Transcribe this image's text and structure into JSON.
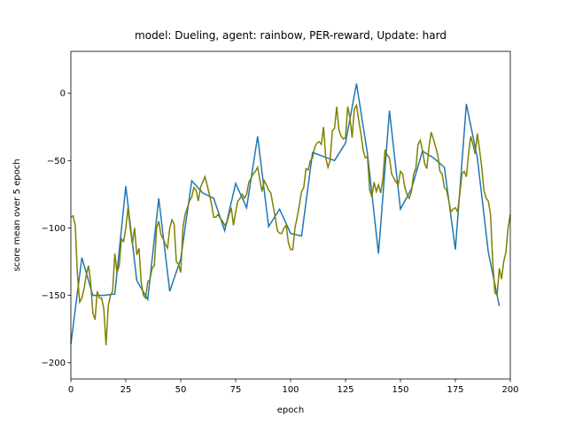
{
  "chart_data": {
    "type": "line",
    "title": "model: Dueling, agent: rainbow, PER-reward, Update: hard",
    "x_label": "epoch",
    "y_label": "score mean over 5 epoch",
    "xlim": [
      0,
      200
    ],
    "ylim": [
      -212,
      31
    ],
    "xticks": [
      0,
      25,
      50,
      75,
      100,
      125,
      150,
      175,
      200
    ],
    "yticks": [
      {
        "value": -200,
        "label": "−200"
      },
      {
        "value": -150,
        "label": "−150"
      },
      {
        "value": -100,
        "label": "−100"
      },
      {
        "value": -50,
        "label": "−50"
      },
      0
    ],
    "series": [
      {
        "color": "#1f77b4",
        "x": [
          0,
          5,
          10,
          15,
          20,
          25,
          30,
          35,
          40,
          45,
          50,
          55,
          60,
          65,
          70,
          75,
          80,
          85,
          90,
          95,
          100,
          105,
          110,
          115,
          120,
          125,
          130,
          135,
          140,
          145,
          150,
          155,
          160,
          165,
          170,
          175,
          180,
          185,
          190,
          195
        ],
        "values": [
          -186,
          -122,
          -150,
          -150,
          -149,
          -69,
          -139,
          -153,
          -78,
          -147,
          -123,
          -65,
          -74,
          -78,
          -102,
          -67,
          -85,
          -32,
          -99,
          -86,
          -104,
          -106,
          -44,
          -47,
          -50,
          -37,
          7,
          -45,
          -119,
          -13,
          -86,
          -71,
          -43,
          -48,
          -55,
          -116,
          -8,
          -48,
          -118,
          -158
        ]
      },
      {
        "color": "#808000",
        "x": [
          0,
          1,
          2,
          3,
          4,
          5,
          6,
          7,
          8,
          9,
          10,
          11,
          12,
          13,
          14,
          15,
          16,
          17,
          18,
          19,
          20,
          21,
          22,
          23,
          24,
          25,
          26,
          27,
          28,
          29,
          30,
          31,
          32,
          33,
          34,
          35,
          36,
          37,
          38,
          39,
          40,
          41,
          42,
          43,
          44,
          45,
          46,
          47,
          48,
          49,
          50,
          51,
          52,
          53,
          54,
          55,
          56,
          57,
          58,
          59,
          60,
          61,
          62,
          63,
          64,
          65,
          66,
          67,
          68,
          69,
          70,
          71,
          72,
          73,
          74,
          75,
          76,
          77,
          78,
          79,
          80,
          81,
          82,
          83,
          84,
          85,
          86,
          87,
          88,
          89,
          90,
          91,
          92,
          93,
          94,
          95,
          96,
          97,
          98,
          99,
          100,
          101,
          102,
          103,
          104,
          105,
          106,
          107,
          108,
          109,
          110,
          111,
          112,
          113,
          114,
          115,
          116,
          117,
          118,
          119,
          120,
          121,
          122,
          123,
          124,
          125,
          126,
          127,
          128,
          129,
          130,
          131,
          132,
          133,
          134,
          135,
          136,
          137,
          138,
          139,
          140,
          141,
          142,
          143,
          144,
          145,
          146,
          147,
          148,
          149,
          150,
          151,
          152,
          153,
          154,
          155,
          156,
          157,
          158,
          159,
          160,
          161,
          162,
          163,
          164,
          165,
          166,
          167,
          168,
          169,
          170,
          171,
          172,
          173,
          174,
          175,
          176,
          177,
          178,
          179,
          180,
          181,
          182,
          183,
          184,
          185,
          186,
          187,
          188,
          189,
          190,
          191,
          192,
          193,
          194,
          195,
          196,
          197,
          198,
          199,
          200
        ],
        "values": [
          -92,
          -91,
          -98,
          -135,
          -155,
          -152,
          -145,
          -135,
          -128,
          -140,
          -163,
          -168,
          -147,
          -152,
          -152,
          -160,
          -187,
          -158,
          -150,
          -147,
          -119,
          -133,
          -128,
          -108,
          -110,
          -100,
          -85,
          -100,
          -112,
          -100,
          -120,
          -115,
          -140,
          -150,
          -152,
          -140,
          -138,
          -130,
          -128,
          -100,
          -95,
          -105,
          -108,
          -112,
          -115,
          -100,
          -94,
          -97,
          -125,
          -127,
          -133,
          -100,
          -90,
          -85,
          -80,
          -77,
          -70,
          -72,
          -80,
          -70,
          -66,
          -62,
          -68,
          -75,
          -82,
          -92,
          -92,
          -90,
          -93,
          -95,
          -98,
          -96,
          -90,
          -85,
          -98,
          -88,
          -80,
          -78,
          -75,
          -78,
          -75,
          -66,
          -63,
          -60,
          -58,
          -55,
          -64,
          -73,
          -65,
          -68,
          -72,
          -74,
          -83,
          -92,
          -102,
          -104,
          -104,
          -100,
          -98,
          -111,
          -116,
          -116,
          -100,
          -92,
          -83,
          -73,
          -70,
          -56,
          -57,
          -50,
          -48,
          -40,
          -37,
          -36,
          -38,
          -25,
          -48,
          -55,
          -50,
          -28,
          -26,
          -10,
          -27,
          -32,
          -34,
          -33,
          -10,
          -18,
          -33,
          -12,
          -9,
          -20,
          -30,
          -42,
          -48,
          -47,
          -72,
          -77,
          -66,
          -73,
          -68,
          -74,
          -64,
          -42,
          -46,
          -48,
          -60,
          -63,
          -66,
          -68,
          -58,
          -60,
          -70,
          -75,
          -78,
          -73,
          -60,
          -56,
          -38,
          -35,
          -42,
          -52,
          -56,
          -40,
          -29,
          -34,
          -40,
          -46,
          -58,
          -60,
          -70,
          -72,
          -80,
          -88,
          -86,
          -85,
          -88,
          -75,
          -60,
          -58,
          -62,
          -45,
          -32,
          -38,
          -45,
          -30,
          -42,
          -55,
          -72,
          -78,
          -80,
          -90,
          -125,
          -148,
          -150,
          -130,
          -138,
          -125,
          -118,
          -100,
          -90
        ]
      }
    ]
  }
}
